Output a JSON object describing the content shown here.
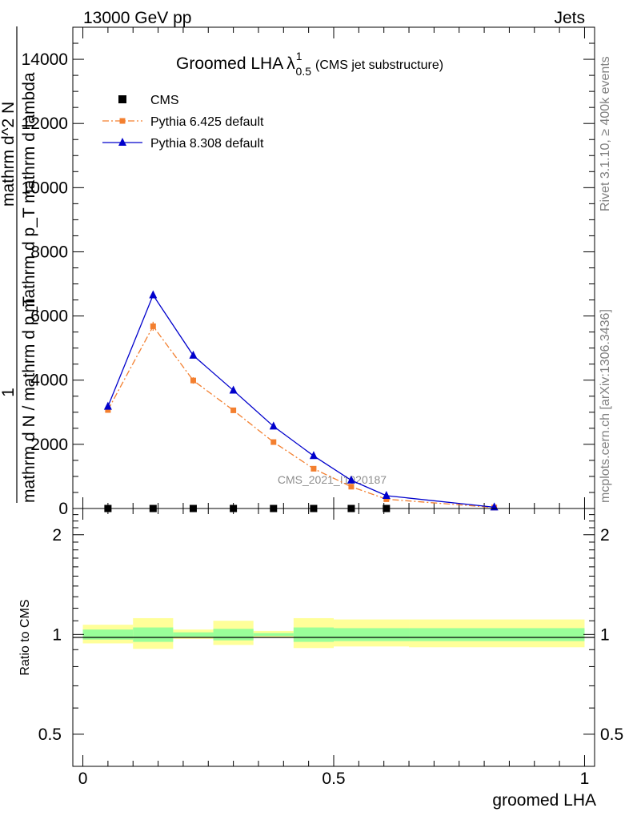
{
  "header": {
    "left": "13000 GeV pp",
    "right": "Jets"
  },
  "side_text": {
    "rivet": "Rivet 3.1.10, ≥ 400k events",
    "mcplots": "mcplots.cern.ch [arXiv:1306.3436]"
  },
  "chart_data": [
    {
      "type": "line",
      "title_main": "Groomed LHA",
      "title_lambda": "λ",
      "title_sup": "1",
      "title_sub": "0.5",
      "title_suffix": "(CMS jet substructure)",
      "watermark": "CMS_2021_I1920187",
      "ylabel_numerator": "1",
      "ylabel_denominator": "mathrm d N / mathrm d p_T",
      "ylabel_numerator2": "mathrm d^2 N",
      "ylabel_denominator2": "mathrm d p_T mathrm d lambda",
      "ylim": [
        0,
        15000
      ],
      "yticks": [
        {
          "value": 0,
          "label": "0"
        },
        {
          "value": 2000,
          "label": "2000"
        },
        {
          "value": 4000,
          "label": "4000"
        },
        {
          "value": 6000,
          "label": "6000"
        },
        {
          "value": 8000,
          "label": "8000"
        },
        {
          "value": 10000,
          "label": "10000"
        },
        {
          "value": 12000,
          "label": "12000"
        },
        {
          "value": 14000,
          "label": "14000"
        }
      ],
      "xlim": [
        -0.02,
        1.02
      ],
      "legend_position": "top-left",
      "series": [
        {
          "name": "CMS",
          "color": "#000000",
          "marker": "square",
          "x": [
            0.05,
            0.14,
            0.22,
            0.3,
            0.38,
            0.46,
            0.535,
            0.605
          ],
          "y": [
            0,
            0,
            0,
            0,
            0,
            0,
            0,
            0
          ]
        },
        {
          "name": "Pythia 6.425 default",
          "color": "#f37f2f",
          "marker": "square",
          "line": "dashdot",
          "x": [
            0.05,
            0.14,
            0.22,
            0.3,
            0.38,
            0.46,
            0.535,
            0.605,
            0.82
          ],
          "y": [
            3070,
            5680,
            3990,
            3060,
            2070,
            1240,
            680,
            290,
            30
          ],
          "yerr": [
            60,
            140,
            100,
            70,
            50,
            40,
            30,
            20,
            5
          ]
        },
        {
          "name": "Pythia 8.308 default",
          "color": "#0000cc",
          "marker": "triangle",
          "line": "solid",
          "x": [
            0.05,
            0.14,
            0.22,
            0.3,
            0.38,
            0.46,
            0.535,
            0.605,
            0.82
          ],
          "y": [
            3180,
            6650,
            4770,
            3680,
            2560,
            1640,
            880,
            400,
            40
          ]
        }
      ]
    },
    {
      "type": "area",
      "ylabel": "Ratio to CMS",
      "xlabel": "groomed LHA",
      "ylim": [
        0.4,
        2.4
      ],
      "log_y": true,
      "yticks": [
        {
          "value": 0.5,
          "label": "0.5"
        },
        {
          "value": 1,
          "label": "1"
        },
        {
          "value": 2,
          "label": "2"
        }
      ],
      "xticks": [
        {
          "value": 0,
          "label": "0"
        },
        {
          "value": 0.5,
          "label": "0.5"
        },
        {
          "value": 1,
          "label": "1"
        }
      ],
      "xlim": [
        -0.02,
        1.02
      ],
      "bins": [
        {
          "lo": 0.0,
          "hi": 0.1,
          "green": [
            0.965,
            1.035
          ],
          "yellow": [
            0.94,
            1.07
          ]
        },
        {
          "lo": 0.1,
          "hi": 0.18,
          "green": [
            0.95,
            1.05
          ],
          "yellow": [
            0.905,
            1.12
          ]
        },
        {
          "lo": 0.18,
          "hi": 0.26,
          "green": [
            0.985,
            1.015
          ],
          "yellow": [
            0.97,
            1.035
          ]
        },
        {
          "lo": 0.26,
          "hi": 0.34,
          "green": [
            0.96,
            1.04
          ],
          "yellow": [
            0.93,
            1.1
          ]
        },
        {
          "lo": 0.34,
          "hi": 0.42,
          "green": [
            0.99,
            1.01
          ],
          "yellow": [
            0.98,
            1.025
          ]
        },
        {
          "lo": 0.42,
          "hi": 0.5,
          "green": [
            0.95,
            1.05
          ],
          "yellow": [
            0.91,
            1.12
          ]
        },
        {
          "lo": 0.5,
          "hi": 0.65,
          "green": [
            0.955,
            1.045
          ],
          "yellow": [
            0.92,
            1.11
          ]
        },
        {
          "lo": 0.65,
          "hi": 1.0,
          "green": [
            0.955,
            1.045
          ],
          "yellow": [
            0.915,
            1.11
          ]
        }
      ]
    }
  ]
}
